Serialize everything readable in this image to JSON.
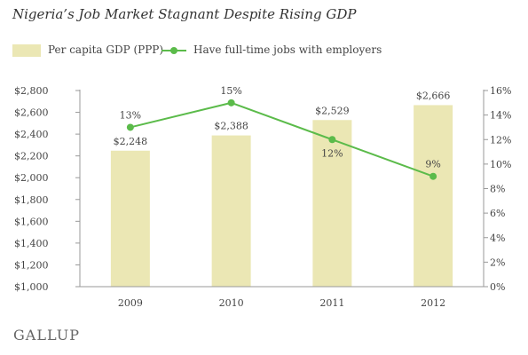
{
  "title": "Nigeria’s Job Market Stagnant Despite Rising GDP",
  "logo": "GALLUP",
  "legend": {
    "bar_label": "Per capita GDP (PPP)",
    "line_label": "Have full-time jobs with employers"
  },
  "colors": {
    "bar": "#ebe7b4",
    "line": "#5bbb4a",
    "axis": "#999999",
    "text": "#444444"
  },
  "chart_data": {
    "type": "bar",
    "title": "Nigeria’s Job Market Stagnant Despite Rising GDP",
    "categories": [
      "2009",
      "2010",
      "2011",
      "2012"
    ],
    "series": [
      {
        "name": "Per capita GDP (PPP)",
        "type": "bar",
        "axis": "left",
        "values": [
          2248,
          2388,
          2529,
          2666
        ],
        "labels": [
          "$2,248",
          "$2,388",
          "$2,529",
          "$2,666"
        ]
      },
      {
        "name": "Have full-time jobs with employers",
        "type": "line",
        "axis": "right",
        "values": [
          13,
          15,
          12,
          9
        ],
        "labels": [
          "13%",
          "15%",
          "12%",
          "9%"
        ]
      }
    ],
    "y_left": {
      "min": 1000,
      "max": 2800,
      "ticks": [
        1000,
        1200,
        1400,
        1600,
        1800,
        2000,
        2200,
        2400,
        2600,
        2800
      ],
      "tick_labels": [
        "$1,000",
        "$1,200",
        "$1,400",
        "$1,600",
        "$1,800",
        "$2,000",
        "$2,200",
        "$2,400",
        "$2,600",
        "$2,800"
      ]
    },
    "y_right": {
      "min": 0,
      "max": 16,
      "ticks": [
        0,
        2,
        4,
        6,
        8,
        10,
        12,
        14,
        16
      ],
      "tick_labels": [
        "0%",
        "2%",
        "4%",
        "6%",
        "8%",
        "10%",
        "12%",
        "14%",
        "16%"
      ]
    },
    "grid": false,
    "legend_position": "top-left"
  }
}
